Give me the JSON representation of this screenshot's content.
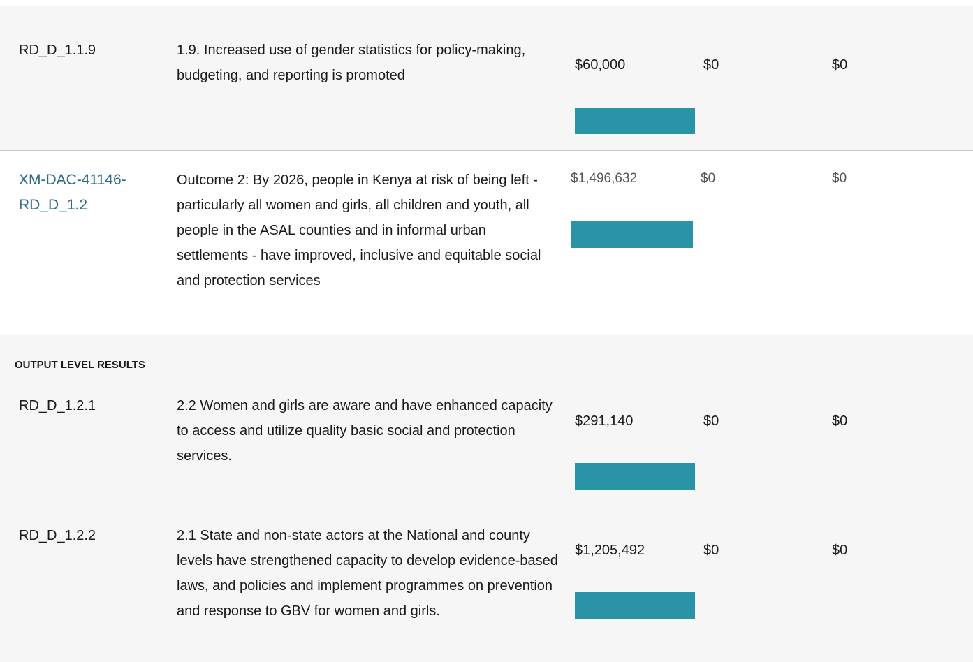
{
  "section_label": "OUTPUT LEVEL RESULTS",
  "rows": [
    {
      "code": "RD_D_1.1.9",
      "description": "1.9. Increased use of gender statistics for policy-making, budgeting, and reporting is promoted",
      "planned": "$60,000",
      "required": "$0",
      "available": "$0"
    },
    {
      "code": "XM-DAC-41146-RD_D_1.2",
      "description": "Outcome 2: By 2026, people in Kenya at risk of being left - particularly all women and girls, all children and youth, all people in the ASAL counties and in informal urban settlements - have improved, inclusive and equitable social and protection services",
      "planned": "$1,496,632",
      "required": "$0",
      "available": "$0"
    },
    {
      "code": "RD_D_1.2.1",
      "description": "2.2 Women and girls are aware and have enhanced capacity to access and utilize quality basic social and protection services.",
      "planned": "$291,140",
      "required": "$0",
      "available": "$0"
    },
    {
      "code": "RD_D_1.2.2",
      "description": "2.1 State and non-state actors at the National and county levels have strengthened capacity to develop evidence-based laws, and policies and implement programmes on prevention and response to GBV for women and girls.",
      "planned": "$1,205,492",
      "required": "$0",
      "available": "$0"
    }
  ]
}
